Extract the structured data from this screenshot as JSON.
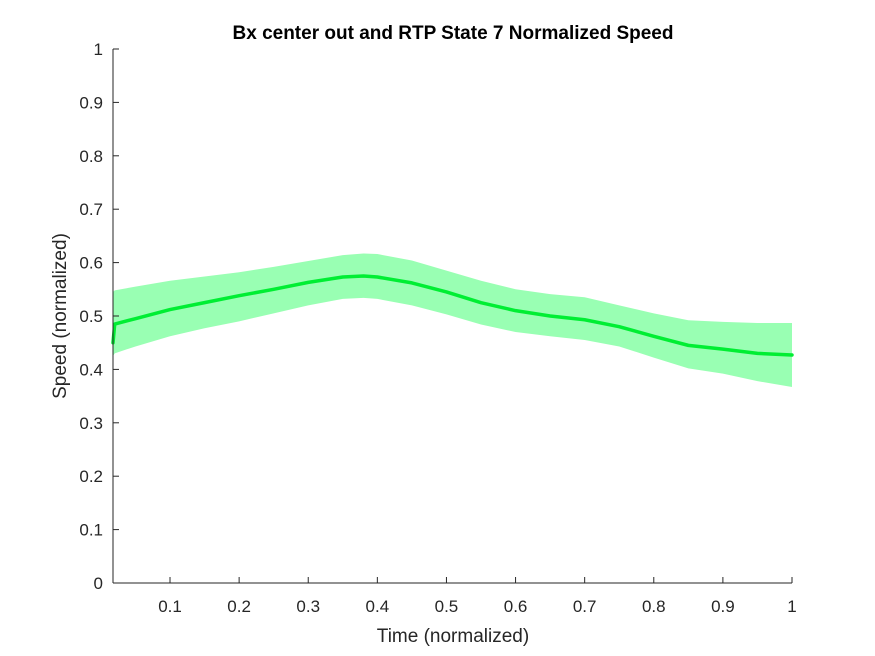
{
  "chart_data": {
    "type": "area",
    "title": "Bx  center out and RTP State 7 Normalized Speed",
    "xlabel": "Time (normalized)",
    "ylabel": "Speed (normalized)",
    "xlim": [
      0.0175,
      1.0
    ],
    "ylim": [
      0,
      1
    ],
    "xticks": [
      0.1,
      0.2,
      0.3,
      0.4,
      0.5,
      0.6,
      0.7,
      0.8,
      0.9,
      1
    ],
    "xtick_labels": [
      "0.1",
      "0.2",
      "0.3",
      "0.4",
      "0.5",
      "0.6",
      "0.7",
      "0.8",
      "0.9",
      "1"
    ],
    "yticks": [
      0,
      0.1,
      0.2,
      0.3,
      0.4,
      0.5,
      0.6,
      0.7,
      0.8,
      0.9,
      1
    ],
    "ytick_labels": [
      "0",
      "0.1",
      "0.2",
      "0.3",
      "0.4",
      "0.5",
      "0.6",
      "0.7",
      "0.8",
      "0.9",
      "1"
    ],
    "grid": false,
    "series": [
      {
        "line_color": "#00ee33",
        "band_color": "#99ffb3",
        "x": [
          0.0175,
          0.02,
          0.05,
          0.1,
          0.15,
          0.2,
          0.25,
          0.3,
          0.35,
          0.38,
          0.4,
          0.45,
          0.5,
          0.55,
          0.6,
          0.65,
          0.7,
          0.75,
          0.8,
          0.85,
          0.9,
          0.95,
          1.0
        ],
        "mean": [
          0.45,
          0.485,
          0.495,
          0.512,
          0.525,
          0.538,
          0.55,
          0.563,
          0.573,
          0.575,
          0.573,
          0.562,
          0.545,
          0.525,
          0.51,
          0.5,
          0.493,
          0.48,
          0.462,
          0.445,
          0.438,
          0.43,
          0.427
        ],
        "upper": [
          0.545,
          0.548,
          0.555,
          0.566,
          0.574,
          0.582,
          0.592,
          0.603,
          0.614,
          0.617,
          0.616,
          0.604,
          0.585,
          0.566,
          0.55,
          0.541,
          0.535,
          0.52,
          0.505,
          0.492,
          0.489,
          0.487,
          0.487
        ],
        "lower": [
          0.425,
          0.43,
          0.443,
          0.462,
          0.477,
          0.49,
          0.505,
          0.52,
          0.532,
          0.534,
          0.532,
          0.52,
          0.503,
          0.484,
          0.47,
          0.462,
          0.455,
          0.443,
          0.422,
          0.402,
          0.392,
          0.378,
          0.367
        ]
      }
    ]
  }
}
